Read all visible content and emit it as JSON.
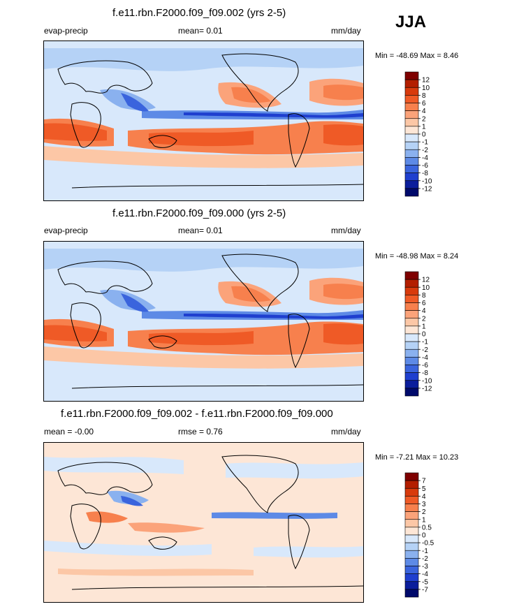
{
  "season": "JJA",
  "panels": [
    {
      "title": "f.e11.rbn.F2000.f09_f09.002 (yrs 2-5)",
      "left_label": "evap-precip",
      "center_label": "mean=  0.01",
      "right_label": "mm/day",
      "minmax": "Min = -48.69 Max =  8.46",
      "colorbar_labels": [
        "12",
        "10",
        "8",
        "6",
        "4",
        "2",
        "1",
        "0",
        "-1",
        "-2",
        "-4",
        "-6",
        "-8",
        "-10",
        "-12"
      ],
      "colorbar_colors": [
        "#7f0000",
        "#b31e00",
        "#d83a0c",
        "#ef5a26",
        "#f7804d",
        "#fba37a",
        "#fcc7a6",
        "#fde6d6",
        "#d8e8fb",
        "#b5d2f6",
        "#8ab1ef",
        "#5d8ae6",
        "#3a64dd",
        "#1f3fcf",
        "#0b1e9c",
        "#000a6b"
      ]
    },
    {
      "title": "f.e11.rbn.F2000.f09_f09.000 (yrs 2-5)",
      "left_label": "evap-precip",
      "center_label": "mean=  0.01",
      "right_label": "mm/day",
      "minmax": "Min = -48.98 Max =  8.24",
      "colorbar_labels": [
        "12",
        "10",
        "8",
        "6",
        "4",
        "2",
        "1",
        "0",
        "-1",
        "-2",
        "-4",
        "-6",
        "-8",
        "-10",
        "-12"
      ],
      "colorbar_colors": [
        "#7f0000",
        "#b31e00",
        "#d83a0c",
        "#ef5a26",
        "#f7804d",
        "#fba37a",
        "#fcc7a6",
        "#fde6d6",
        "#d8e8fb",
        "#b5d2f6",
        "#8ab1ef",
        "#5d8ae6",
        "#3a64dd",
        "#1f3fcf",
        "#0b1e9c",
        "#000a6b"
      ]
    },
    {
      "title": "f.e11.rbn.F2000.f09_f09.002 - f.e11.rbn.F2000.f09_f09.000",
      "left_label": "mean = -0.00",
      "center_label": "rmse =  0.76",
      "right_label": "mm/day",
      "minmax": "Min = -7.21 Max = 10.23",
      "colorbar_labels": [
        "7",
        "5",
        "4",
        "3",
        "2",
        "1",
        "0.5",
        "0",
        "-0.5",
        "-1",
        "-2",
        "-3",
        "-4",
        "-5",
        "-7"
      ],
      "colorbar_colors": [
        "#7f0000",
        "#b31e00",
        "#d83a0c",
        "#ef5a26",
        "#f7804d",
        "#fba37a",
        "#fcc7a6",
        "#fde6d6",
        "#d8e8fb",
        "#b5d2f6",
        "#8ab1ef",
        "#5d8ae6",
        "#3a64dd",
        "#1f3fcf",
        "#0b1e9c",
        "#000a6b"
      ]
    }
  ]
}
